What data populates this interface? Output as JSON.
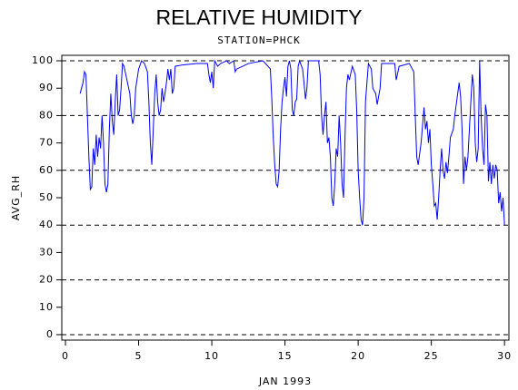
{
  "chart_data": {
    "type": "line",
    "title": "RELATIVE HUMIDITY",
    "subtitle": "STATION=PHCK",
    "y_label": "AVG_RH",
    "x_label": "JAN 1993",
    "color": "#0000ff",
    "xlim": [
      -0.25,
      30.3
    ],
    "xticks": [
      0,
      5,
      10,
      15,
      20,
      25,
      30
    ],
    "ylim": [
      -2,
      102
    ],
    "yticks": [
      0,
      10,
      20,
      30,
      40,
      50,
      60,
      70,
      80,
      90,
      100
    ],
    "grid_lines": [
      0,
      20,
      40,
      60,
      80,
      100
    ],
    "x": [
      1.0,
      1.2,
      1.3,
      1.4,
      1.5,
      1.6,
      1.7,
      1.8,
      1.9,
      2.0,
      2.1,
      2.2,
      2.3,
      2.4,
      2.5,
      2.6,
      2.7,
      2.8,
      2.9,
      3.0,
      3.1,
      3.2,
      3.3,
      3.4,
      3.5,
      3.6,
      3.7,
      3.8,
      3.9,
      4.0,
      4.2,
      4.4,
      4.5,
      4.6,
      4.7,
      4.8,
      5.0,
      5.2,
      5.4,
      5.6,
      5.7,
      5.8,
      5.9,
      6.0,
      6.1,
      6.2,
      6.3,
      6.4,
      6.5,
      6.6,
      6.7,
      6.8,
      6.9,
      7.0,
      7.1,
      7.2,
      7.3,
      7.4,
      7.5,
      8.0,
      9.0,
      9.7,
      9.8,
      9.9,
      10.0,
      10.1,
      10.2,
      10.4,
      10.6,
      11.0,
      11.2,
      11.5,
      11.6,
      11.7,
      12.5,
      13.5,
      14.0,
      14.1,
      14.2,
      14.3,
      14.4,
      14.5,
      14.6,
      14.7,
      14.8,
      14.9,
      15.0,
      15.1,
      15.2,
      15.3,
      15.4,
      15.5,
      15.6,
      15.7,
      15.8,
      15.9,
      16.0,
      16.2,
      16.3,
      16.4,
      16.5,
      16.6,
      17.0,
      17.3,
      17.4,
      17.5,
      17.6,
      17.7,
      17.8,
      17.9,
      18.0,
      18.1,
      18.2,
      18.3,
      18.4,
      18.5,
      18.6,
      18.7,
      18.8,
      18.9,
      19.0,
      19.1,
      19.2,
      19.3,
      19.4,
      19.6,
      19.8,
      19.9,
      20.0,
      20.1,
      20.2,
      20.3,
      20.4,
      20.5,
      20.7,
      20.9,
      21.0,
      21.2,
      21.3,
      21.5,
      21.6,
      22.0,
      22.5,
      22.6,
      22.8,
      23.5,
      23.8,
      23.9,
      24.0,
      24.1,
      24.3,
      24.5,
      24.6,
      24.7,
      24.8,
      24.9,
      25.0,
      25.1,
      25.2,
      25.3,
      25.4,
      25.5,
      25.6,
      25.7,
      25.8,
      25.9,
      26.0,
      26.1,
      26.2,
      26.3,
      26.5,
      26.6,
      26.8,
      26.9,
      27.0,
      27.1,
      27.2,
      27.3,
      27.4,
      27.5,
      27.6,
      27.8,
      27.9,
      28.0,
      28.1,
      28.2,
      28.3,
      28.4,
      28.5,
      28.6,
      28.7,
      28.8,
      28.9,
      29.0,
      29.1,
      29.2,
      29.3,
      29.4,
      29.5,
      29.6,
      29.7,
      29.8,
      29.9,
      30.0
    ],
    "values": [
      88,
      92,
      96,
      95,
      80,
      65,
      53,
      54,
      68,
      62,
      73,
      65,
      72,
      68,
      80,
      70,
      55,
      52,
      55,
      75,
      88,
      78,
      73,
      85,
      95,
      80,
      82,
      90,
      99,
      98,
      93,
      88,
      80,
      77,
      80,
      90,
      97,
      100,
      99,
      96,
      85,
      70,
      62,
      75,
      88,
      95,
      85,
      80,
      82,
      90,
      85,
      88,
      92,
      97,
      93,
      97,
      88,
      90,
      98,
      98.5,
      99,
      99,
      95,
      92,
      96,
      90,
      100,
      98,
      99,
      100,
      99,
      100,
      96,
      97,
      99,
      100,
      97,
      86,
      72,
      62,
      55,
      54,
      60,
      75,
      85,
      90,
      94,
      87,
      98,
      100,
      97,
      82,
      80,
      85,
      86,
      98,
      100,
      97,
      92,
      86,
      90,
      100,
      100,
      100,
      95,
      80,
      73,
      80,
      85,
      70,
      72,
      65,
      50,
      47,
      55,
      68,
      65,
      80,
      70,
      55,
      50,
      72,
      90,
      95,
      93,
      98,
      95,
      82,
      60,
      50,
      42,
      40,
      50,
      85,
      99,
      97,
      90,
      88,
      84,
      90,
      99,
      99,
      99,
      93,
      98,
      99,
      96,
      80,
      65,
      62,
      70,
      83,
      75,
      78,
      70,
      75,
      62,
      55,
      47,
      48,
      42,
      50,
      60,
      68,
      60,
      57,
      63,
      59,
      65,
      72,
      75,
      80,
      88,
      92,
      87,
      75,
      55,
      65,
      60,
      65,
      75,
      95,
      90,
      70,
      63,
      68,
      100,
      80,
      68,
      62,
      84,
      80,
      56,
      63,
      55,
      62,
      57,
      62,
      60,
      48,
      52,
      45,
      50,
      40
    ]
  }
}
